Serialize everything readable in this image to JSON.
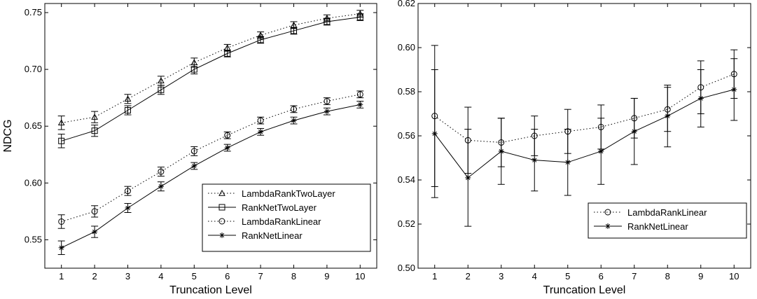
{
  "chart_data": [
    {
      "type": "line",
      "xlabel": "Truncation Level",
      "ylabel": "NDCG",
      "x": [
        1,
        2,
        3,
        4,
        5,
        6,
        7,
        8,
        9,
        10
      ],
      "xlim": [
        0.5,
        10.5
      ],
      "ylim": [
        0.525,
        0.758
      ],
      "yticks": [
        0.55,
        0.6,
        0.65,
        0.7,
        0.75
      ],
      "ytick_labels": [
        "0.55",
        "0.60",
        "0.65",
        "0.70",
        "0.75"
      ],
      "grid": false,
      "legend_position": "bottom-right",
      "series": [
        {
          "name": "LambdaRankTwoLayer",
          "style": "dotted",
          "marker": "triangle",
          "values": [
            0.653,
            0.658,
            0.674,
            0.69,
            0.706,
            0.719,
            0.73,
            0.739,
            0.745,
            0.749
          ],
          "errors": [
            0.006,
            0.005,
            0.004,
            0.004,
            0.004,
            0.003,
            0.003,
            0.003,
            0.003,
            0.003
          ]
        },
        {
          "name": "RankNetTwoLayer",
          "style": "solid",
          "marker": "square",
          "values": [
            0.637,
            0.646,
            0.664,
            0.682,
            0.7,
            0.714,
            0.726,
            0.734,
            0.742,
            0.746
          ],
          "errors": [
            0.006,
            0.005,
            0.004,
            0.004,
            0.004,
            0.003,
            0.003,
            0.003,
            0.003,
            0.003
          ]
        },
        {
          "name": "LambdaRankLinear",
          "style": "dotted",
          "marker": "circle",
          "values": [
            0.566,
            0.575,
            0.593,
            0.61,
            0.628,
            0.642,
            0.655,
            0.665,
            0.672,
            0.678
          ],
          "errors": [
            0.006,
            0.005,
            0.004,
            0.004,
            0.004,
            0.003,
            0.003,
            0.003,
            0.003,
            0.003
          ]
        },
        {
          "name": "RankNetLinear",
          "style": "solid",
          "marker": "star",
          "values": [
            0.543,
            0.557,
            0.578,
            0.597,
            0.615,
            0.631,
            0.645,
            0.655,
            0.663,
            0.669
          ],
          "errors": [
            0.006,
            0.005,
            0.004,
            0.004,
            0.003,
            0.003,
            0.003,
            0.003,
            0.003,
            0.003
          ]
        }
      ]
    },
    {
      "type": "line",
      "xlabel": "Truncation Level",
      "ylabel": "",
      "x": [
        1,
        2,
        3,
        4,
        5,
        6,
        7,
        8,
        9,
        10
      ],
      "xlim": [
        0.5,
        10.5
      ],
      "ylim": [
        0.5,
        0.62
      ],
      "yticks": [
        0.5,
        0.52,
        0.54,
        0.56,
        0.58,
        0.6,
        0.62
      ],
      "ytick_labels": [
        "0.50",
        "0.52",
        "0.54",
        "0.56",
        "0.58",
        "0.60",
        "0.62"
      ],
      "grid": false,
      "legend_position": "bottom-right",
      "series": [
        {
          "name": "LambdaRankLinear",
          "style": "dotted",
          "marker": "circle",
          "values": [
            0.569,
            0.558,
            0.557,
            0.56,
            0.562,
            0.564,
            0.568,
            0.572,
            0.582,
            0.588
          ],
          "errors": [
            0.032,
            0.015,
            0.011,
            0.009,
            0.01,
            0.01,
            0.009,
            0.01,
            0.012,
            0.011
          ]
        },
        {
          "name": "RankNetLinear",
          "style": "solid",
          "marker": "star",
          "values": [
            0.561,
            0.541,
            0.553,
            0.549,
            0.548,
            0.553,
            0.562,
            0.569,
            0.577,
            0.581
          ],
          "errors": [
            0.029,
            0.022,
            0.015,
            0.014,
            0.015,
            0.015,
            0.015,
            0.014,
            0.013,
            0.014
          ]
        }
      ]
    }
  ]
}
